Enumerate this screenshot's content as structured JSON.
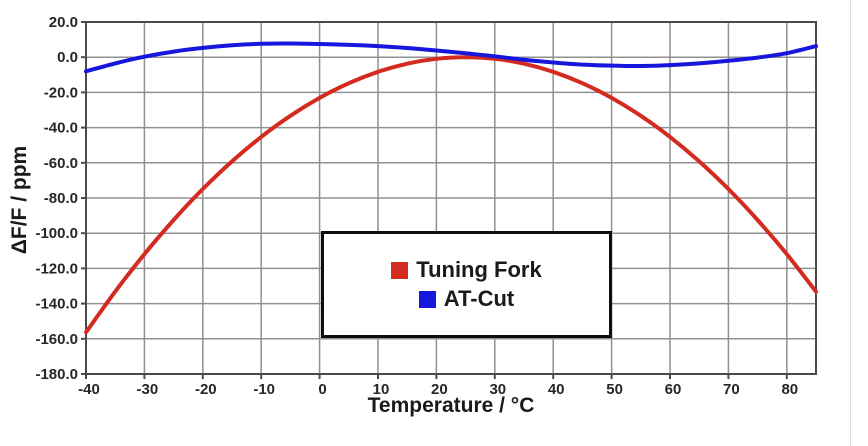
{
  "page": {
    "background": "#ffffff",
    "divider_color": "#dedede"
  },
  "chart_data": {
    "type": "line",
    "title": "",
    "xlabel": "Temperature / °C",
    "ylabel": "ΔF/F / ppm",
    "xlim": [
      -40,
      85
    ],
    "ylim": [
      -180,
      20
    ],
    "grid": true,
    "legend_position": "boxed, lower center of plot",
    "x_ticks": [
      -40,
      -30,
      -20,
      -10,
      0,
      10,
      20,
      30,
      40,
      50,
      60,
      70,
      80
    ],
    "x_tick_labels": [
      "-40",
      "-30",
      "-20",
      "-10",
      "0",
      "10",
      "20",
      "30",
      "40",
      "50",
      "60",
      "70",
      "80"
    ],
    "y_ticks": [
      20,
      0,
      -20,
      -40,
      -60,
      -80,
      -100,
      -120,
      -140,
      -160,
      -180
    ],
    "y_tick_labels": [
      "20.0",
      "0.0",
      "-20.0",
      "-40.0",
      "-60.0",
      "-80.0",
      "-100.0",
      "-120.0",
      "-140.0",
      "-160.0",
      "-180.0"
    ],
    "series": [
      {
        "name": "Tuning Fork",
        "color": "#d42b20",
        "turnover_temp_c": 25,
        "points": [
          [
            -40,
            -156.3
          ],
          [
            -35,
            -133.2
          ],
          [
            -30,
            -111.9
          ],
          [
            -25,
            -92.5
          ],
          [
            -20,
            -74.9
          ],
          [
            -15,
            -59.2
          ],
          [
            -10,
            -45.3
          ],
          [
            -5,
            -33.3
          ],
          [
            0,
            -23.1
          ],
          [
            5,
            -14.8
          ],
          [
            10,
            -8.3
          ],
          [
            15,
            -3.7
          ],
          [
            20,
            -0.9
          ],
          [
            25,
            0
          ],
          [
            30,
            -0.9
          ],
          [
            35,
            -3.7
          ],
          [
            40,
            -8.3
          ],
          [
            45,
            -14.8
          ],
          [
            50,
            -23.1
          ],
          [
            55,
            -33.3
          ],
          [
            60,
            -45.3
          ],
          [
            65,
            -59.2
          ],
          [
            70,
            -74.9
          ],
          [
            75,
            -92.5
          ],
          [
            80,
            -111.9
          ],
          [
            85,
            -133.2
          ]
        ]
      },
      {
        "name": "AT-Cut",
        "color": "#1616dd",
        "points": [
          [
            -40,
            -8.0
          ],
          [
            -35,
            -3.5
          ],
          [
            -30,
            0.3
          ],
          [
            -25,
            3.2
          ],
          [
            -20,
            5.3
          ],
          [
            -15,
            6.8
          ],
          [
            -10,
            7.6
          ],
          [
            -5,
            7.8
          ],
          [
            0,
            7.5
          ],
          [
            5,
            7.0
          ],
          [
            10,
            6.3
          ],
          [
            15,
            5.2
          ],
          [
            20,
            3.8
          ],
          [
            25,
            2.2
          ],
          [
            30,
            0.5
          ],
          [
            35,
            -1.5
          ],
          [
            40,
            -3.0
          ],
          [
            45,
            -4.2
          ],
          [
            50,
            -4.8
          ],
          [
            55,
            -5.0
          ],
          [
            60,
            -4.5
          ],
          [
            65,
            -3.5
          ],
          [
            70,
            -2.0
          ],
          [
            75,
            -0.2
          ],
          [
            80,
            2.3
          ],
          [
            85,
            6.3
          ]
        ]
      }
    ],
    "colors": {
      "grid": "#919191",
      "plot_border": "#4a4a4a",
      "tick_text": "#262626",
      "legend_border": "#0d0d0d"
    }
  }
}
